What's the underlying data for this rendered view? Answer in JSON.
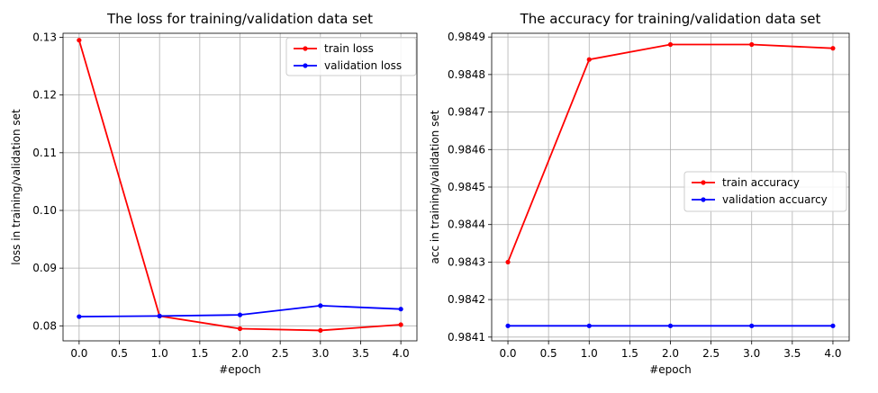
{
  "chart_data": [
    {
      "type": "line",
      "title": "The loss for training/validation data set",
      "xlabel": "#epoch",
      "ylabel": "loss in training/validation set",
      "x": [
        0.0,
        1.0,
        2.0,
        3.0,
        4.0
      ],
      "xlim": [
        -0.2,
        4.2
      ],
      "ylim": [
        0.0774,
        0.1307
      ],
      "xticks": [
        0.0,
        0.5,
        1.0,
        1.5,
        2.0,
        2.5,
        3.0,
        3.5,
        4.0
      ],
      "xtick_labels": [
        "0.0",
        "0.5",
        "1.0",
        "1.5",
        "2.0",
        "2.5",
        "3.0",
        "3.5",
        "4.0"
      ],
      "yticks": [
        0.08,
        0.09,
        0.1,
        0.11,
        0.12,
        0.13
      ],
      "ytick_labels": [
        "0.08",
        "0.09",
        "0.10",
        "0.11",
        "0.12",
        "0.13"
      ],
      "grid": true,
      "legend_position": "top-right",
      "series": [
        {
          "name": "train loss",
          "color": "#ff0000",
          "values": [
            0.1295,
            0.0817,
            0.0795,
            0.0792,
            0.0802
          ]
        },
        {
          "name": "validation loss",
          "color": "#0000ff",
          "values": [
            0.0816,
            0.0817,
            0.0819,
            0.0835,
            0.0829
          ]
        }
      ]
    },
    {
      "type": "line",
      "title": "The accuracy for training/validation data set",
      "xlabel": "#epoch",
      "ylabel": "acc in training/validation set",
      "x": [
        0.0,
        1.0,
        2.0,
        3.0,
        4.0
      ],
      "xlim": [
        -0.2,
        4.2
      ],
      "ylim": [
        0.98409,
        0.98491
      ],
      "xticks": [
        0.0,
        0.5,
        1.0,
        1.5,
        2.0,
        2.5,
        3.0,
        3.5,
        4.0
      ],
      "xtick_labels": [
        "0.0",
        "0.5",
        "1.0",
        "1.5",
        "2.0",
        "2.5",
        "3.0",
        "3.5",
        "4.0"
      ],
      "yticks": [
        0.9841,
        0.9842,
        0.9843,
        0.9844,
        0.9845,
        0.9846,
        0.9847,
        0.9848,
        0.9849
      ],
      "ytick_labels": [
        "0.9841",
        "0.9842",
        "0.9843",
        "0.9844",
        "0.9845",
        "0.9846",
        "0.9847",
        "0.9848",
        "0.9849"
      ],
      "grid": true,
      "legend_position": "center-right",
      "series": [
        {
          "name": "train accuracy",
          "color": "#ff0000",
          "values": [
            0.9843,
            0.98484,
            0.98488,
            0.98488,
            0.98487
          ]
        },
        {
          "name": "validation accuarcy",
          "color": "#0000ff",
          "values": [
            0.98413,
            0.98413,
            0.98413,
            0.98413,
            0.98413
          ]
        }
      ]
    }
  ]
}
